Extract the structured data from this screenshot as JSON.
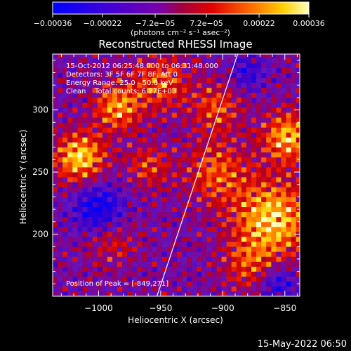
{
  "chart_data": {
    "type": "heatmap",
    "title": "Reconstructed RHESSI Image",
    "xlabel": "Heliocentric X (arcsec)",
    "ylabel": "Heliocentric Y (arcsec)",
    "xlim": [
      -1037,
      -838
    ],
    "ylim": [
      150,
      345
    ],
    "x_ticks": [
      {
        "value": -1000,
        "label": "−1000"
      },
      {
        "value": -950,
        "label": "−950"
      },
      {
        "value": -900,
        "label": "−900"
      },
      {
        "value": -850,
        "label": "−850"
      }
    ],
    "y_ticks": [
      {
        "value": 200,
        "label": "200"
      },
      {
        "value": 250,
        "label": "250"
      },
      {
        "value": 300,
        "label": "300"
      }
    ],
    "colorbar": {
      "units": "(photons cm⁻² s⁻¹ asec⁻²)",
      "range": [
        -0.00036,
        0.00036
      ],
      "ticks": [
        {
          "value": -0.00036,
          "label": "−0.00036"
        },
        {
          "value": -0.00022,
          "label": "−0.00022"
        },
        {
          "value": -7.2e-05,
          "label": "−7.2e−05"
        },
        {
          "value": 7.2e-05,
          "label": "7.2e−05"
        },
        {
          "value": 0.00022,
          "label": "0.00022"
        },
        {
          "value": 0.00036,
          "label": "0.00036"
        }
      ]
    },
    "annotations": [
      "15-Oct-2012 06:25:48.000 to 06:31:48.000",
      "Detectors: 3F 5F 6F 7F 8F, Att 0",
      "Energy Range: 25.0 - 50.0 keV",
      "Clean    Total counts: 6.27E+03"
    ],
    "peak_label": "Position of Peak = [-849,271]",
    "peak": {
      "x": -849,
      "y": 271
    },
    "limb_line": [
      {
        "x": -953,
        "y": 150
      },
      {
        "x": -888,
        "y": 345
      }
    ],
    "hotspots": [
      {
        "x": -1015,
        "y": 262,
        "sigma": 14,
        "amp": 1.0
      },
      {
        "x": -985,
        "y": 302,
        "sigma": 13,
        "amp": 0.8
      },
      {
        "x": -950,
        "y": 322,
        "sigma": 16,
        "amp": 0.6
      },
      {
        "x": -860,
        "y": 212,
        "sigma": 22,
        "amp": 1.0
      },
      {
        "x": -848,
        "y": 278,
        "sigma": 14,
        "amp": 0.9
      },
      {
        "x": -905,
        "y": 250,
        "sigma": 18,
        "amp": 0.6
      },
      {
        "x": -905,
        "y": 302,
        "sigma": 14,
        "amp": 0.55
      },
      {
        "x": -960,
        "y": 255,
        "sigma": 12,
        "amp": 0.5
      },
      {
        "x": -990,
        "y": 195,
        "sigma": 14,
        "amp": 0.4
      },
      {
        "x": -880,
        "y": 175,
        "sigma": 14,
        "amp": 0.45
      }
    ],
    "negative_spots": [
      {
        "x": -1000,
        "y": 220,
        "sigma": 14,
        "amp": 1.0
      },
      {
        "x": -880,
        "y": 330,
        "sigma": 10,
        "amp": 0.6
      },
      {
        "x": -855,
        "y": 160,
        "sigma": 10,
        "amp": 0.7
      }
    ]
  },
  "footer_timestamp": "15-May-2022 06:50"
}
